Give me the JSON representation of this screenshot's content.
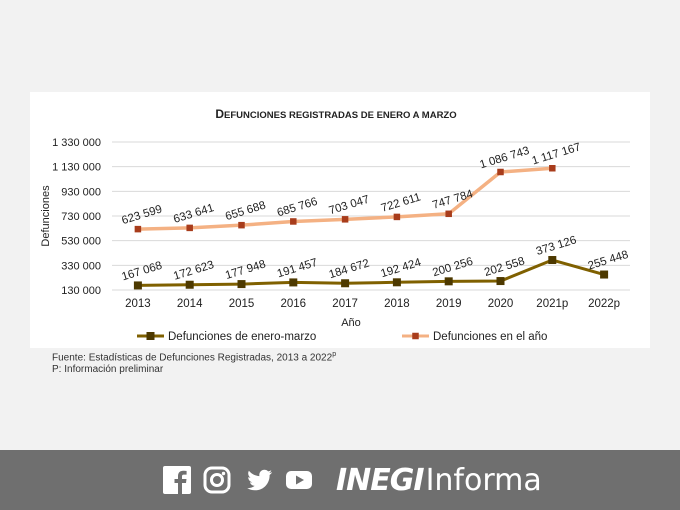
{
  "chart_data": {
    "type": "line",
    "title_cap1": "D",
    "title_rest1": "EFUNCIONES REGISTRADAS DE ENERO A MARZO",
    "xlabel": "Año",
    "ylabel": "Defunciones",
    "categories": [
      "2013",
      "2014",
      "2015",
      "2016",
      "2017",
      "2018",
      "2019",
      "2020",
      "2021p",
      "2022p"
    ],
    "yticks": [
      130000,
      330000,
      530000,
      730000,
      930000,
      1130000,
      1330000
    ],
    "ytick_labels": [
      "130 000",
      "330 000",
      "530 000",
      "730 000",
      "930 000",
      "1 130 000",
      "1 330 000"
    ],
    "ylim": [
      130000,
      1330000
    ],
    "grid": true,
    "legend_position": "bottom",
    "series": [
      {
        "name": "Defunciones de enero-marzo",
        "color": "#7f6000",
        "marker_color": "#4d3900",
        "values": [
          167068,
          172623,
          177948,
          191457,
          184672,
          192424,
          200256,
          202558,
          373126,
          255448
        ],
        "labels": [
          "167 068",
          "172 623",
          "177 948",
          "191 457",
          "184 672",
          "192 424",
          "200 256",
          "202 558",
          "373 126",
          "255 448"
        ]
      },
      {
        "name": "Defunciones en el año",
        "color": "#f4b183",
        "marker_color": "#a83c1b",
        "values": [
          623599,
          633641,
          655688,
          685766,
          703047,
          722611,
          747784,
          1086743,
          1117167,
          null
        ],
        "labels": [
          "623 599",
          "633 641",
          "655 688",
          "685 766",
          "703 047",
          "722 611",
          "747 784",
          "1 086 743",
          "1 117 167",
          null
        ]
      }
    ]
  },
  "source": {
    "line1_text": "Fuente: Estadísticas de Defunciones Registradas, 2013 a 2022",
    "line1_sup": "p",
    "line2": "P: Información preliminar"
  },
  "footer": {
    "icons": [
      "facebook-icon",
      "instagram-icon",
      "twitter-icon",
      "youtube-icon"
    ],
    "brand_bold": "INEGI",
    "brand_light": "Informa",
    "bg_color": "#6f6f6f"
  }
}
